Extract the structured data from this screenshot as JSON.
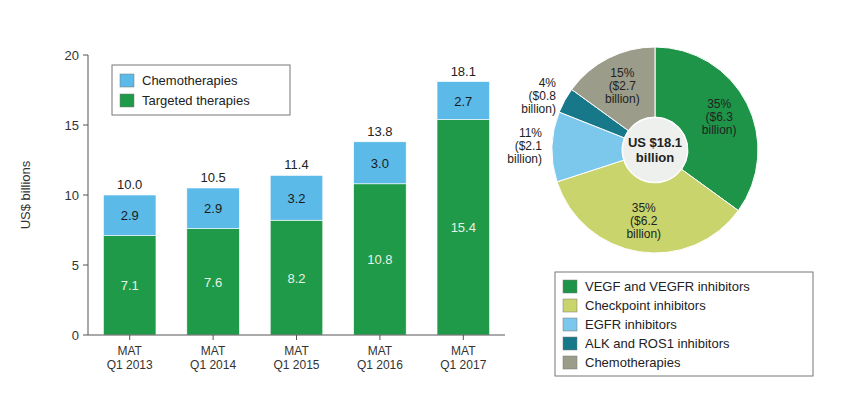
{
  "chart_data": [
    {
      "type": "bar",
      "stacked": true,
      "data_labels": true,
      "legend": "upper left",
      "y_label": "US$ billions",
      "categories": [
        "MAT Q1 2013",
        "MAT Q1 2014",
        "MAT Q1 2015",
        "MAT Q1 2016",
        "MAT Q1 2017"
      ],
      "series": [
        {
          "name": "Targeted therapies",
          "color": "#1f9a48",
          "values": [
            7.1,
            7.6,
            8.2,
            10.8,
            15.4
          ]
        },
        {
          "name": "Chemotherapies",
          "color": "#5bbae8",
          "values": [
            2.9,
            2.9,
            3.2,
            3.0,
            2.7
          ],
          "value_labels": [
            "2.9",
            "2.9",
            "3.2",
            "3.0",
            "2.7"
          ]
        }
      ],
      "totals": [
        10,
        10.5,
        11.4,
        13.8,
        18.1
      ],
      "total_labels": [
        "10.0",
        "10.5",
        "11.4",
        "13.8",
        "18.1"
      ],
      "ylim": [
        0,
        20
      ],
      "yticks": [
        0,
        5,
        10,
        15,
        20
      ],
      "grid": false
    },
    {
      "type": "pie",
      "legend": "lower right",
      "data_labels": true,
      "categories": [
        "VEGF and VEGFR inhibitors",
        "Checkpoint inhibitors",
        "EGFR inhibitors",
        "ALK and ROS1 inhibitors",
        "Chemotherapies"
      ],
      "values": [
        35,
        35,
        11,
        4,
        15
      ],
      "value_labels": [
        "35%",
        "35%",
        "11%",
        "4%",
        "15%"
      ],
      "amounts": [
        6.3,
        6.2,
        2.1,
        0.8,
        2.7
      ],
      "amount_labels": [
        "($6.3 billion)",
        "($6.2 billion)",
        "($2.1 billion)",
        "($0.8 billion)",
        "($2.7 billion)"
      ],
      "colors": [
        "#1e9448",
        "#c9d46c",
        "#7cc7ec",
        "#17788a",
        "#9c9c8a"
      ],
      "center_label": [
        "US $18.1",
        "billion"
      ]
    }
  ]
}
